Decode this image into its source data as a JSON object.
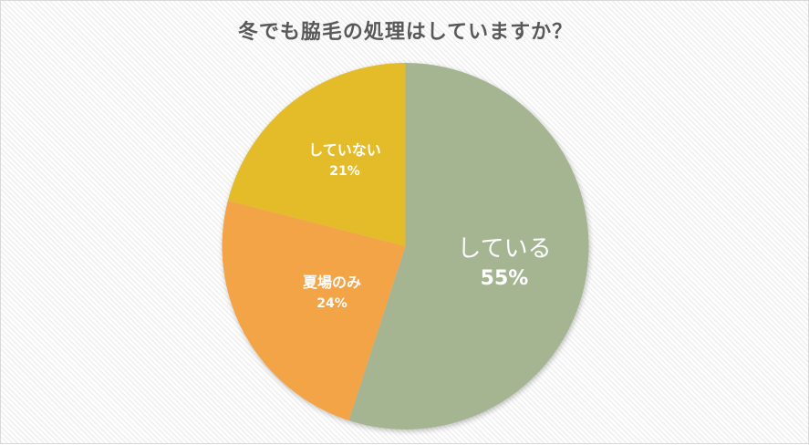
{
  "chart_data": {
    "type": "pie",
    "title": "冬でも脇毛の処理はしていますか？",
    "start_angle": "12 o'clock, clockwise",
    "slices": [
      {
        "label": "している",
        "value": 55,
        "display": "55%",
        "color": "#A5B592"
      },
      {
        "label": "夏場のみ",
        "value": 24,
        "display": "24%",
        "color": "#F2A446"
      },
      {
        "label": "していない",
        "value": 21,
        "display": "21%",
        "color": "#E4BC2A"
      }
    ],
    "legend": "none (data labels inside slices)"
  }
}
